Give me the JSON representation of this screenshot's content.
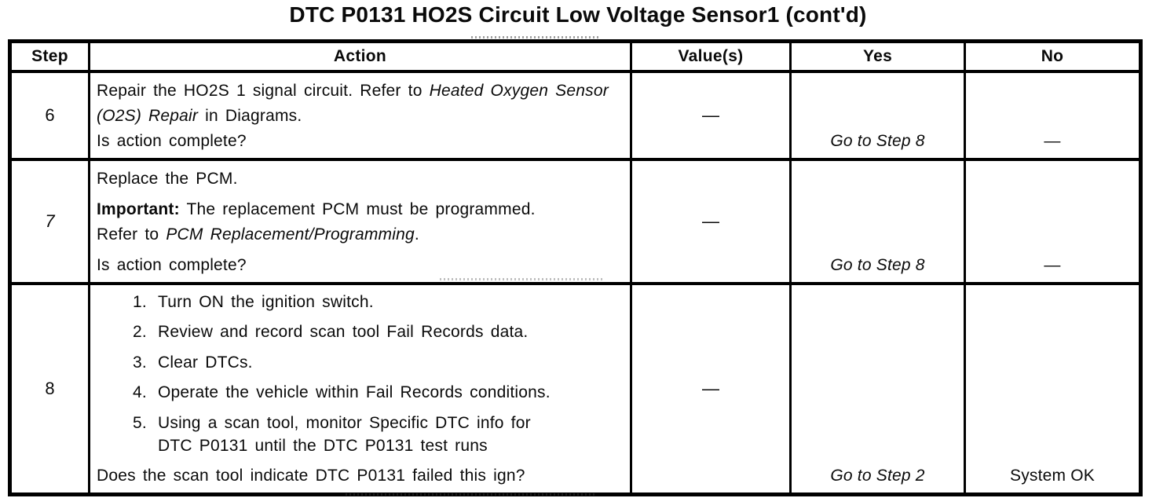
{
  "title": "DTC P0131 HO2S Circuit Low Voltage Sensor1 (cont'd)",
  "table": {
    "headers": [
      "Step",
      "Action",
      "Value(s)",
      "Yes",
      "No"
    ],
    "rows": [
      {
        "step": "6",
        "action": {
          "intro": "Repair the HO2S 1 signal circuit. Refer to ",
          "reference": "Heated Oxygen Sensor (O2S) Repair",
          "outro": " in Diagrams.",
          "question": "Is action complete?"
        },
        "value": "—",
        "yes": "Go to Step 8",
        "no": "—"
      },
      {
        "step": "7",
        "action": {
          "p1": "Replace the PCM.",
          "important_label": "Important:",
          "important_text": " The replacement PCM must be programmed.",
          "refer_intro": "Refer to ",
          "reference": "PCM Replacement/Programming",
          "refer_outro": ".",
          "question": "Is action complete?"
        },
        "value": "—",
        "yes": "Go to Step 8",
        "no": "—"
      },
      {
        "step": "8",
        "action": {
          "list": [
            {
              "num": "1.",
              "text": "Turn ON the ignition switch."
            },
            {
              "num": "2.",
              "text": "Review and record scan tool Fail Records data."
            },
            {
              "num": "3.",
              "text": "Clear DTCs."
            },
            {
              "num": "4.",
              "text": "Operate the vehicle within Fail Records conditions."
            },
            {
              "num": "5.",
              "text": "Using a scan tool, monitor Specific DTC info for DTC P0131 until the DTC P0131 test runs"
            }
          ],
          "question": "Does the scan tool indicate DTC P0131 failed this ign?"
        },
        "value": "—",
        "yes": "Go to Step 2",
        "no": "System OK"
      }
    ]
  }
}
